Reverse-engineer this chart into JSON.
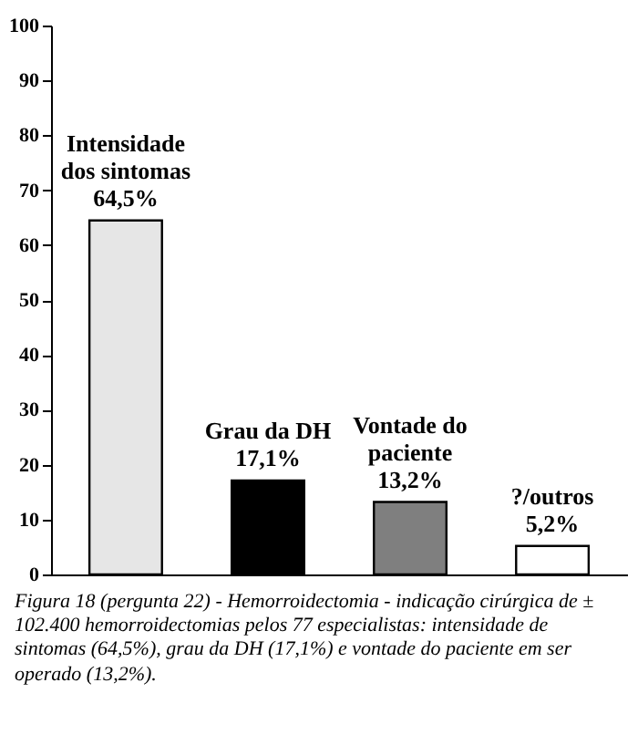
{
  "chart_data": {
    "type": "bar",
    "categories": [
      "Intensidade dos sintomas",
      "Grau da DH",
      "Vontade do paciente",
      "?/outros"
    ],
    "values": [
      64.5,
      17.1,
      13.2,
      5.2
    ],
    "value_labels": [
      "64,5%",
      "17,1%",
      "13,2%",
      "5,2%"
    ],
    "colors": [
      "#e6e6e6",
      "#000000",
      "#7f7f7f",
      "#ffffff"
    ],
    "ylim": [
      0,
      100
    ],
    "yticks": [
      0,
      10,
      20,
      30,
      40,
      50,
      60,
      70,
      80,
      90,
      100
    ],
    "grid": false,
    "annotations": [
      "Figura 18 (pergunta 22) - Hemorroidectomia - indicação cirúrgica de ± 102.400 hemorroidectomias pelos 77 especialistas: intensidade de sintomas (64,5%), grau da DH (17,1%) e vontade do paciente em ser operado (13,2%)."
    ]
  }
}
